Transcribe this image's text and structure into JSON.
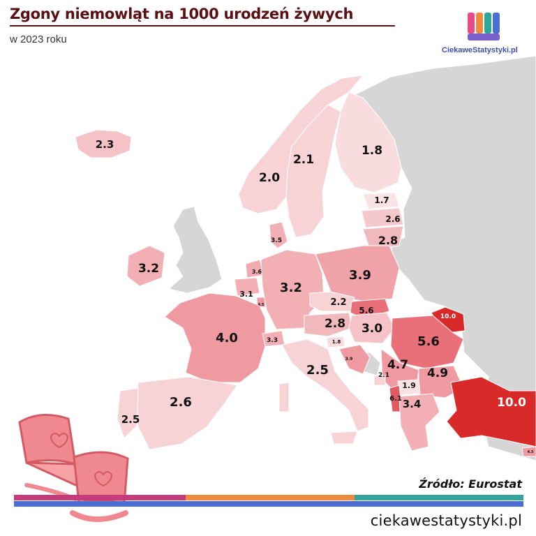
{
  "header": {
    "title": "Zgony niemowląt na 1000 urodzeń żywych",
    "subtitle": "w 2023 roku"
  },
  "logo": {
    "text": "CiekaweStatystyki.pl",
    "icon": "bar-logo-icon"
  },
  "footer": {
    "source": "Źródło: Eurostat",
    "url": "ciekawestatystyki.pl"
  },
  "colors": {
    "low": "#f7d3d6",
    "mid": "#ef9a9f",
    "high": "#d92a2a",
    "no_data": "#d7d6d6",
    "stripe_1": "#c63b7b",
    "stripe_2": "#ef8b3d",
    "stripe_3": "#34a59a",
    "stripe_4": "#4b6fd1"
  },
  "regions": [
    {
      "country": "Iceland",
      "value": "2.3"
    },
    {
      "country": "Norway",
      "value": "2.0"
    },
    {
      "country": "Sweden",
      "value": "2.1"
    },
    {
      "country": "Finland",
      "value": "1.8"
    },
    {
      "country": "Estonia",
      "value": "1.7"
    },
    {
      "country": "Latvia",
      "value": "2.6"
    },
    {
      "country": "Lithuania",
      "value": "2.8"
    },
    {
      "country": "Denmark",
      "value": "3.5"
    },
    {
      "country": "Ireland",
      "value": "3.2"
    },
    {
      "country": "Netherlands",
      "value": "3.6"
    },
    {
      "country": "Belgium",
      "value": "3.1"
    },
    {
      "country": "Luxembourg",
      "value": "4.5"
    },
    {
      "country": "Germany",
      "value": "3.2"
    },
    {
      "country": "Poland",
      "value": "3.9"
    },
    {
      "country": "Czechia",
      "value": "2.2"
    },
    {
      "country": "Slovakia",
      "value": "5.6"
    },
    {
      "country": "Austria",
      "value": "2.8"
    },
    {
      "country": "Hungary",
      "value": "3.0"
    },
    {
      "country": "Moldova",
      "value": "10.0"
    },
    {
      "country": "Romania",
      "value": "5.6"
    },
    {
      "country": "France",
      "value": "4.0"
    },
    {
      "country": "Switzerland",
      "value": "3.3"
    },
    {
      "country": "Slovenia",
      "value": "1.8"
    },
    {
      "country": "Croatia",
      "value": "3.9"
    },
    {
      "country": "Italy",
      "value": "2.5"
    },
    {
      "country": "Serbia",
      "value": "4.7"
    },
    {
      "country": "Bulgaria",
      "value": "4.9"
    },
    {
      "country": "Montenegro",
      "value": "2.1"
    },
    {
      "country": "North Macedonia",
      "value": "1.9"
    },
    {
      "country": "Albania",
      "value": "6.1"
    },
    {
      "country": "Greece",
      "value": "3.4"
    },
    {
      "country": "Turkey",
      "value": "10.0"
    },
    {
      "country": "Spain",
      "value": "2.6"
    },
    {
      "country": "Portugal",
      "value": "2.5"
    },
    {
      "country": "Cyprus",
      "value": "4.5"
    }
  ]
}
